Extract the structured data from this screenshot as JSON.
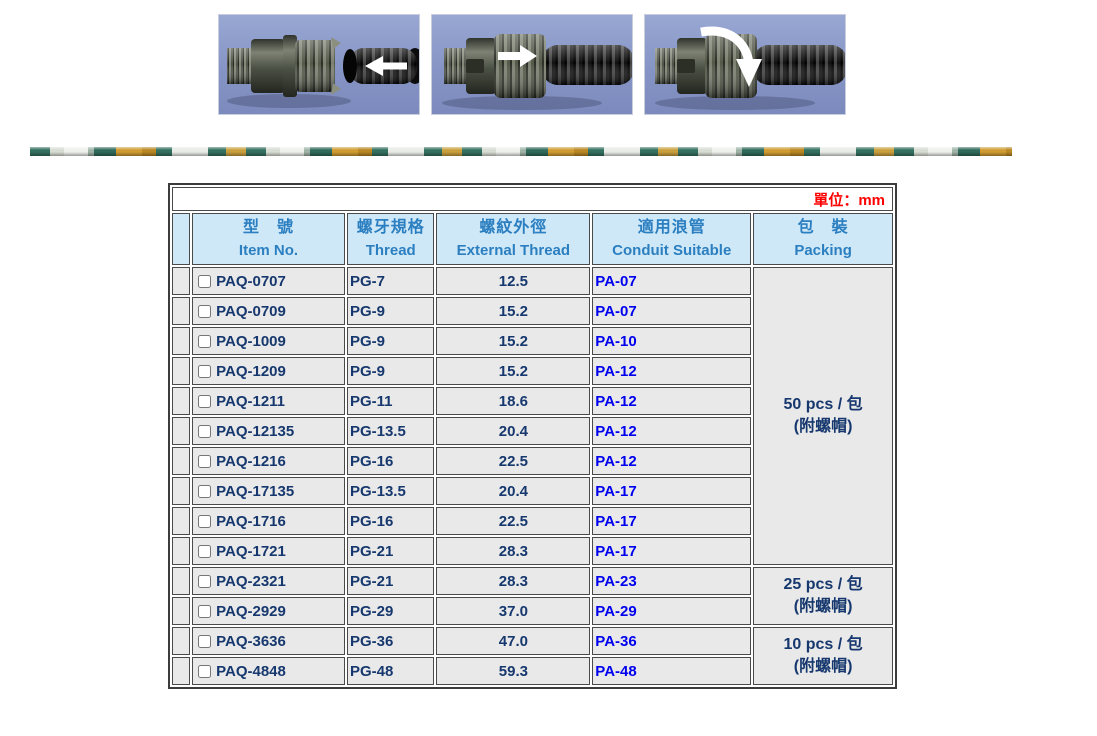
{
  "photos": [
    {
      "label": "step-1-insert-conduit",
      "arrow_direction": "left"
    },
    {
      "label": "step-2-push-conduit-in",
      "arrow_direction": "right"
    },
    {
      "label": "step-3-tighten-nut",
      "arrow_direction": "rotate-down"
    }
  ],
  "table": {
    "unit_label": "單位：mm",
    "headers": [
      {
        "zh": "型　號",
        "en": "Item No."
      },
      {
        "zh": "螺牙規格",
        "en": "Thread"
      },
      {
        "zh": "螺紋外徑",
        "en": "External Thread"
      },
      {
        "zh": "適用浪管",
        "en": "Conduit Suitable"
      },
      {
        "zh": "包　裝",
        "en": "Packing"
      }
    ],
    "rows": [
      {
        "item_no": "PAQ-0707",
        "thread": "PG-7",
        "external_thread": "12.5",
        "conduit": "PA-07",
        "checked": false
      },
      {
        "item_no": "PAQ-0709",
        "thread": "PG-9",
        "external_thread": "15.2",
        "conduit": "PA-07",
        "checked": false
      },
      {
        "item_no": "PAQ-1009",
        "thread": "PG-9",
        "external_thread": "15.2",
        "conduit": "PA-10",
        "checked": false
      },
      {
        "item_no": "PAQ-1209",
        "thread": "PG-9",
        "external_thread": "15.2",
        "conduit": "PA-12",
        "checked": false
      },
      {
        "item_no": "PAQ-1211",
        "thread": "PG-11",
        "external_thread": "18.6",
        "conduit": "PA-12",
        "checked": false
      },
      {
        "item_no": "PAQ-12135",
        "thread": "PG-13.5",
        "external_thread": "20.4",
        "conduit": "PA-12",
        "checked": false
      },
      {
        "item_no": "PAQ-1216",
        "thread": "PG-16",
        "external_thread": "22.5",
        "conduit": "PA-12",
        "checked": false
      },
      {
        "item_no": "PAQ-17135",
        "thread": "PG-13.5",
        "external_thread": "20.4",
        "conduit": "PA-17",
        "checked": false
      },
      {
        "item_no": "PAQ-1716",
        "thread": "PG-16",
        "external_thread": "22.5",
        "conduit": "PA-17",
        "checked": false
      },
      {
        "item_no": "PAQ-1721",
        "thread": "PG-21",
        "external_thread": "28.3",
        "conduit": "PA-17",
        "checked": false
      },
      {
        "item_no": "PAQ-2321",
        "thread": "PG-21",
        "external_thread": "28.3",
        "conduit": "PA-23",
        "checked": false
      },
      {
        "item_no": "PAQ-2929",
        "thread": "PG-29",
        "external_thread": "37.0",
        "conduit": "PA-29",
        "checked": false
      },
      {
        "item_no": "PAQ-3636",
        "thread": "PG-36",
        "external_thread": "47.0",
        "conduit": "PA-36",
        "checked": false
      },
      {
        "item_no": "PAQ-4848",
        "thread": "PG-48",
        "external_thread": "59.3",
        "conduit": "PA-48",
        "checked": false
      }
    ],
    "packing_groups": [
      {
        "line1": "50 pcs / 包",
        "line2": "(附螺帽)",
        "row_span": 10
      },
      {
        "line1": "25 pcs / 包",
        "line2": "(附螺帽)",
        "row_span": 2
      },
      {
        "line1": "10 pcs / 包",
        "line2": "(附螺帽)",
        "row_span": 2
      }
    ]
  },
  "colors": {
    "header_bg": "#cfe8f8",
    "header_text": "#2b7fc0",
    "cell_bg": "#e9e9e9",
    "data_text": "#16386e",
    "link_text": "#0000ee",
    "unit_text": "#ff0000",
    "cell_border": "#4a4a4a"
  }
}
